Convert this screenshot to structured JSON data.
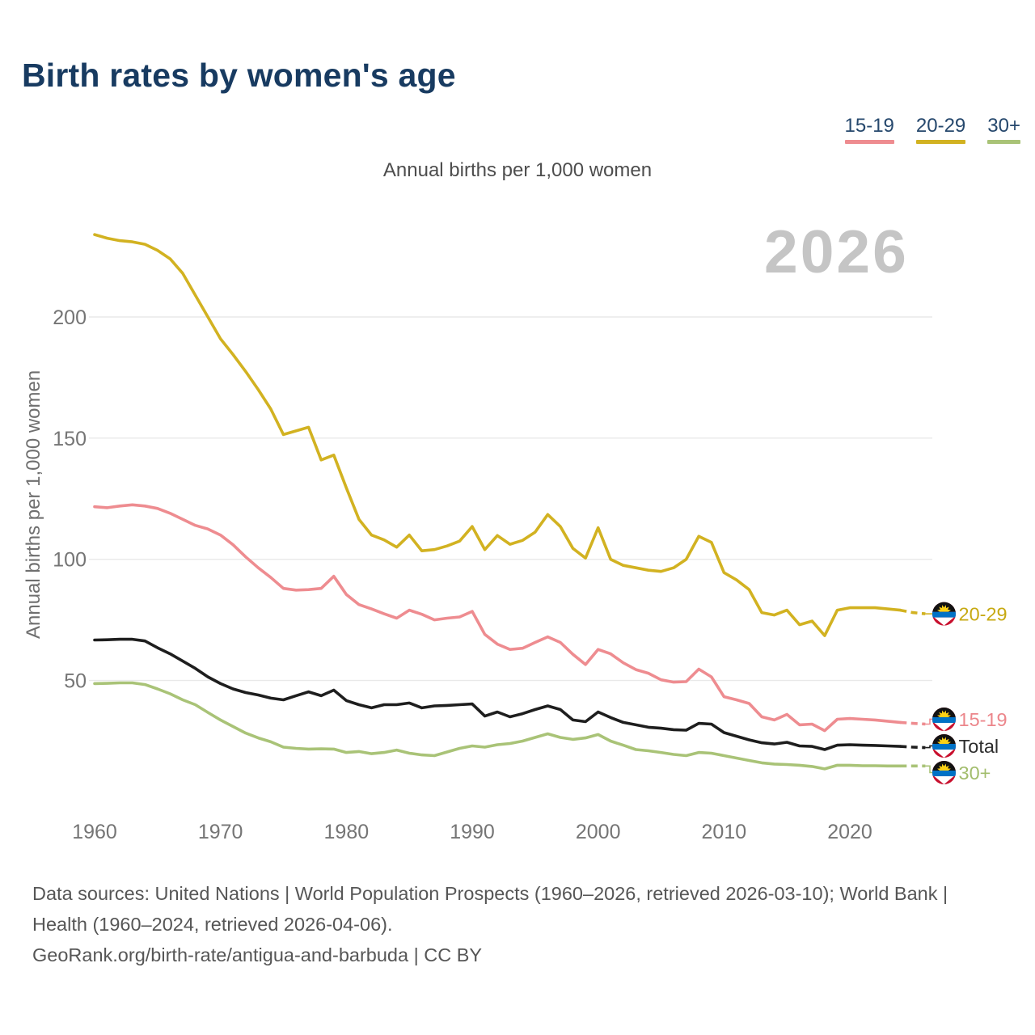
{
  "header": {
    "title": "Birth rates by women's age"
  },
  "subtitle": "Annual births per 1,000 women",
  "watermark": "2026",
  "legend": {
    "items": [
      {
        "label": "15-19",
        "color": "#ee8c90"
      },
      {
        "label": "20-29",
        "color": "#d2b221"
      },
      {
        "label": "30+",
        "color": "#a9c377"
      }
    ]
  },
  "y_axis": {
    "label": "Annual births per 1,000 women",
    "ticks": [
      200,
      150,
      100,
      50
    ]
  },
  "x_axis": {
    "ticks": [
      1960,
      1970,
      1980,
      1990,
      2000,
      2010,
      2020
    ]
  },
  "footer": {
    "sources": "Data sources: United Nations | World Population Prospects (1960–2026, retrieved 2026-03-10); World Bank | Health (1960–2024, retrieved 2026-04-06).",
    "attribution": "GeoRank.org/birth-rate/antigua-and-barbuda | CC BY"
  },
  "chart_data": {
    "type": "line",
    "title": "Birth rates by women's age",
    "units": "Annual births per 1,000 women",
    "country": "antigua-and-barbuda",
    "x_start": 1960,
    "x_end": 2026,
    "x_step": 1,
    "ylim": [
      0,
      240
    ],
    "grid": "horizontal",
    "legend_position": "top-right",
    "dashed_from_year": 2024,
    "end_marker": "antigua-and-barbuda-flag",
    "series": [
      {
        "name": "20-29",
        "color": "#d2b221",
        "text_color": "#c7a912",
        "values": [
          234,
          232.5,
          231.5,
          231,
          230,
          227.5,
          224,
          218,
          209,
          200,
          191,
          184.5,
          177.5,
          170,
          162,
          151.5,
          153,
          154.5,
          141,
          143,
          129.5,
          116.5,
          110,
          108,
          105,
          110,
          103.5,
          104,
          105.5,
          107.5,
          113.5,
          104,
          109.8,
          106.2,
          107.8,
          111.2,
          118.5,
          113.5,
          104.5,
          100.5,
          113,
          100,
          97.5,
          96.5,
          95.5,
          95,
          96.5,
          100,
          109.5,
          107,
          94.5,
          91.5,
          87.5,
          78,
          77,
          79,
          73,
          74.5,
          68.5,
          79,
          80,
          80,
          80,
          79.5,
          79,
          78,
          77.5
        ]
      },
      {
        "name": "15-19",
        "color": "#ee8c90",
        "text_color": "#ec868b",
        "values": [
          121.7,
          121.3,
          122,
          122.5,
          122,
          121,
          119,
          116.5,
          114,
          112.5,
          110,
          106,
          101,
          96.5,
          92.5,
          88,
          87.3,
          87.5,
          88,
          93,
          85.5,
          81.3,
          79.5,
          77.5,
          75.7,
          79,
          77.3,
          75,
          75.7,
          76.2,
          78.5,
          69,
          65,
          62.8,
          63.3,
          65.7,
          68,
          65.7,
          60.8,
          56.6,
          62.8,
          61,
          57.3,
          54.5,
          53,
          50.3,
          49.3,
          49.5,
          54.7,
          51.5,
          43.3,
          42,
          40.5,
          35,
          33.7,
          36,
          31.7,
          32,
          29.3,
          34,
          34.3,
          34,
          33.7,
          33.2,
          32.7,
          32.3,
          32
        ]
      },
      {
        "name": "Total",
        "color": "#1e1e1e",
        "text_color": "#2e2e2e",
        "values": [
          66.7,
          66.8,
          67,
          67,
          66.3,
          63.5,
          61,
          58,
          55,
          51.5,
          48.7,
          46.5,
          45,
          44,
          42.7,
          42,
          43.7,
          45.3,
          43.7,
          46,
          41.7,
          40,
          38.7,
          40,
          40,
          40.7,
          38.7,
          39.5,
          39.7,
          40,
          40.3,
          35.3,
          37,
          35,
          36.3,
          38,
          39.5,
          38,
          33.7,
          33,
          37,
          34.7,
          32.7,
          31.7,
          30.7,
          30.3,
          29.7,
          29.5,
          32.3,
          32,
          28.5,
          27,
          25.5,
          24.3,
          23.8,
          24.5,
          23,
          22.8,
          21.5,
          23.3,
          23.5,
          23.3,
          23.2,
          23,
          22.8,
          22.5,
          22.3
        ]
      },
      {
        "name": "30+",
        "color": "#a9c377",
        "text_color": "#a2bd6c",
        "values": [
          48.7,
          48.8,
          49,
          49,
          48.3,
          46.5,
          44.5,
          42,
          40,
          36.8,
          33.7,
          31,
          28.3,
          26.3,
          24.7,
          22.5,
          22,
          21.7,
          21.8,
          21.7,
          20.3,
          20.7,
          19.8,
          20.3,
          21.3,
          20,
          19.3,
          19,
          20.5,
          22,
          23,
          22.5,
          23.5,
          24,
          25,
          26.5,
          28,
          26.5,
          25.7,
          26.3,
          27.7,
          25,
          23.3,
          21.5,
          21,
          20.3,
          19.5,
          19,
          20.3,
          20,
          19,
          18,
          17,
          16,
          15.5,
          15.3,
          15,
          14.5,
          13.5,
          15,
          15,
          14.8,
          14.8,
          14.7,
          14.7,
          14.7,
          14.7
        ]
      }
    ]
  }
}
